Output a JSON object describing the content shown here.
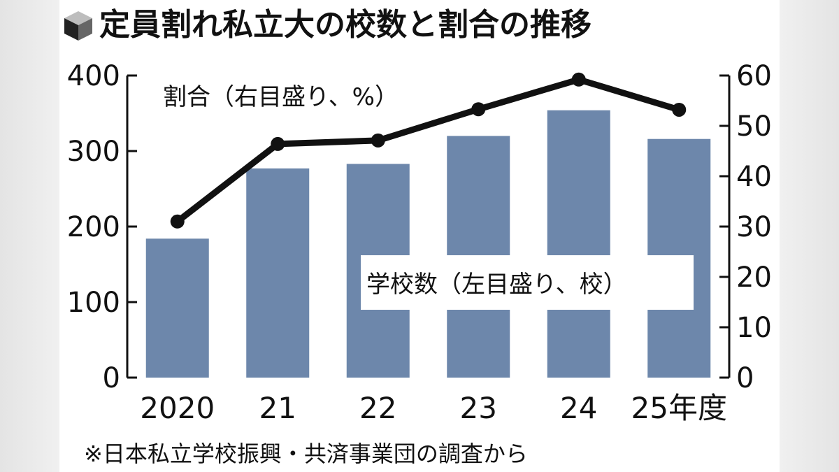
{
  "title": "定員割れ私立大の校数と割合の推移",
  "icon": "cube-icon",
  "note": "※日本私立学校振興・共済事業団の調査から",
  "colors": {
    "bar": "#6d87ab",
    "line": "#111111"
  },
  "chart_data": {
    "type": "bar+line",
    "categories": [
      "2020",
      "21",
      "22",
      "23",
      "24",
      "25年度"
    ],
    "series": [
      {
        "name": "学校数（左目盛り、校）",
        "type": "bar",
        "axis": "left",
        "values": [
          184,
          277,
          283,
          320,
          354,
          316
        ]
      },
      {
        "name": "割合（右目盛り、%）",
        "type": "line",
        "axis": "right",
        "values": [
          31.0,
          46.4,
          47.1,
          53.3,
          59.2,
          53.2
        ]
      }
    ],
    "y_left": {
      "range": [
        0,
        400
      ],
      "ticks": [
        "0",
        "100",
        "200",
        "300",
        "400"
      ]
    },
    "y_right": {
      "range": [
        0,
        60
      ],
      "ticks": [
        "0",
        "10",
        "20",
        "30",
        "40",
        "50",
        "60"
      ]
    },
    "grid": false
  }
}
